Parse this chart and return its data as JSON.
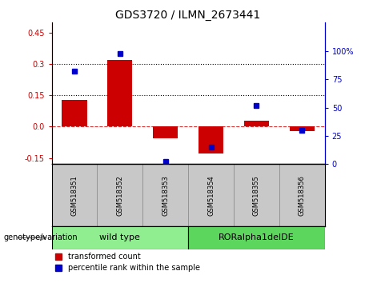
{
  "title": "GDS3720 / ILMN_2673441",
  "samples": [
    "GSM518351",
    "GSM518352",
    "GSM518353",
    "GSM518354",
    "GSM518355",
    "GSM518356"
  ],
  "red_values": [
    0.13,
    0.32,
    -0.055,
    -0.13,
    0.03,
    -0.02
  ],
  "blue_values": [
    82,
    98,
    2,
    15,
    52,
    30
  ],
  "left_ylim": [
    -0.18,
    0.5
  ],
  "right_ylim": [
    0,
    125
  ],
  "left_yticks": [
    -0.15,
    0.0,
    0.15,
    0.3,
    0.45
  ],
  "right_yticks": [
    0,
    25,
    50,
    75,
    100
  ],
  "right_ytick_labels": [
    "0",
    "25",
    "50",
    "75",
    "100%"
  ],
  "hlines": [
    0.15,
    0.3
  ],
  "red_zero_line": 0.0,
  "group_wt_label": "wild type",
  "group_ro_label": "RORalpha1delDE",
  "group_wt_color": "#90EE90",
  "group_ro_color": "#5DD65D",
  "genotype_label": "genotype/variation",
  "legend_red": "transformed count",
  "legend_blue": "percentile rank within the sample",
  "bar_width": 0.55,
  "red_color": "#CC0000",
  "blue_color": "#0000CC",
  "sample_box_color": "#C8C8C8",
  "title_fontsize": 10,
  "tick_fontsize": 7,
  "sample_fontsize": 6,
  "group_fontsize": 8,
  "legend_fontsize": 7,
  "geno_fontsize": 7
}
